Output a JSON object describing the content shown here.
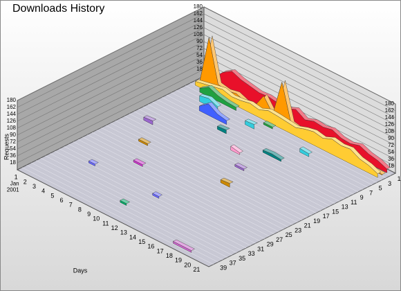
{
  "chart_data": {
    "type": "ribbon3d",
    "title": "Downloads History",
    "y_label": "Requests",
    "x_label": "Days",
    "categories": [
      "1",
      "2",
      "3",
      "4",
      "5",
      "6",
      "7",
      "8",
      "9",
      "10",
      "11",
      "12",
      "13",
      "14",
      "15",
      "16",
      "17",
      "18",
      "19",
      "20",
      "21"
    ],
    "first_category_sublabel": [
      "Jan",
      "2001"
    ],
    "z_categories": [
      "1",
      null,
      "3",
      null,
      "5",
      null,
      "7",
      null,
      "9",
      null,
      "11",
      null,
      "13",
      null,
      "15",
      null,
      "17",
      null,
      "19",
      null,
      "21",
      null,
      "23",
      null,
      "25",
      null,
      "27",
      null,
      "29",
      null,
      "31",
      null,
      "33",
      null,
      "35",
      null,
      "37",
      null,
      "39",
      null
    ],
    "ylim": [
      0,
      180
    ],
    "yticks": [
      18,
      36,
      54,
      72,
      90,
      108,
      126,
      144,
      162,
      180
    ],
    "grid": true,
    "series": [
      {
        "z": 0,
        "color": "#e8102a",
        "values": [
          10,
          20,
          45,
          60,
          50,
          45,
          40,
          42,
          38,
          35,
          45,
          30,
          38,
          35,
          40,
          30,
          28,
          35,
          25,
          20,
          10
        ]
      },
      {
        "z": 1,
        "color": "#ff9900",
        "values": [
          5,
          130,
          20,
          15,
          20,
          10,
          12,
          50,
          15,
          110,
          15,
          10,
          8,
          10,
          5,
          10,
          8,
          5,
          5,
          3,
          2
        ]
      },
      {
        "z": 2,
        "color": "#ffcc33",
        "values": [
          10,
          15,
          20,
          25,
          18,
          20,
          25,
          20,
          30,
          28,
          25,
          22,
          30,
          35,
          30,
          40,
          35,
          38,
          25,
          20,
          10
        ]
      },
      {
        "z": 3,
        "color": "#20a040",
        "values": [
          null,
          10,
          25,
          15,
          10,
          8,
          null,
          null,
          5,
          5,
          null,
          null,
          null,
          null,
          null,
          null,
          null,
          null,
          null,
          null,
          null
        ]
      },
      {
        "z": 5,
        "color": "#33ccdd",
        "values": [
          null,
          null,
          15,
          20,
          10,
          null,
          null,
          10,
          12,
          null,
          null,
          null,
          null,
          10,
          8,
          null,
          null,
          null,
          null,
          null,
          null
        ]
      },
      {
        "z": 7,
        "color": "#4060ff",
        "values": [
          null,
          null,
          null,
          12,
          30,
          15,
          10,
          null,
          null,
          null,
          null,
          null,
          null,
          null,
          null,
          null,
          null,
          null,
          null,
          null,
          null
        ]
      },
      {
        "z": 9,
        "color": "#008080",
        "values": [
          null,
          null,
          null,
          null,
          null,
          null,
          8,
          10,
          null,
          null,
          null,
          6,
          8,
          5,
          null,
          null,
          null,
          null,
          null,
          null,
          null
        ]
      },
      {
        "z": 12,
        "color": "#ff99cc",
        "values": [
          null,
          null,
          null,
          null,
          null,
          null,
          null,
          null,
          null,
          10,
          5,
          null,
          null,
          null,
          null,
          null,
          null,
          null,
          null,
          null,
          null
        ]
      },
      {
        "z": 15,
        "color": "#9966cc",
        "values": [
          null,
          8,
          10,
          null,
          null,
          null,
          null,
          null,
          null,
          null,
          null,
          5,
          5,
          null,
          null,
          null,
          null,
          null,
          null,
          null,
          null
        ]
      },
      {
        "z": 20,
        "color": "#cc8800",
        "values": [
          null,
          null,
          null,
          5,
          5,
          null,
          null,
          null,
          null,
          null,
          null,
          null,
          8,
          10,
          null,
          null,
          null,
          null,
          null,
          null,
          null
        ]
      },
      {
        "z": 25,
        "color": "#cc33cc",
        "values": [
          null,
          null,
          null,
          null,
          null,
          5,
          5,
          null,
          null,
          null,
          null,
          null,
          null,
          null,
          null,
          null,
          null,
          null,
          null,
          null,
          null
        ]
      },
      {
        "z": 30,
        "color": "#6666ff",
        "values": [
          null,
          null,
          null,
          5,
          null,
          null,
          null,
          null,
          null,
          null,
          5,
          null,
          null,
          null,
          null,
          null,
          null,
          null,
          null,
          null,
          null
        ]
      },
      {
        "z": 35,
        "color": "#00aa66",
        "values": [
          null,
          null,
          null,
          null,
          null,
          null,
          null,
          null,
          null,
          5,
          null,
          null,
          null,
          null,
          null,
          null,
          null,
          null,
          null,
          null,
          null
        ]
      },
      {
        "z": 38,
        "color": "#cc66cc",
        "values": [
          null,
          null,
          null,
          null,
          null,
          null,
          null,
          null,
          null,
          null,
          null,
          null,
          null,
          null,
          null,
          null,
          5,
          5,
          5,
          null,
          null
        ]
      }
    ]
  }
}
